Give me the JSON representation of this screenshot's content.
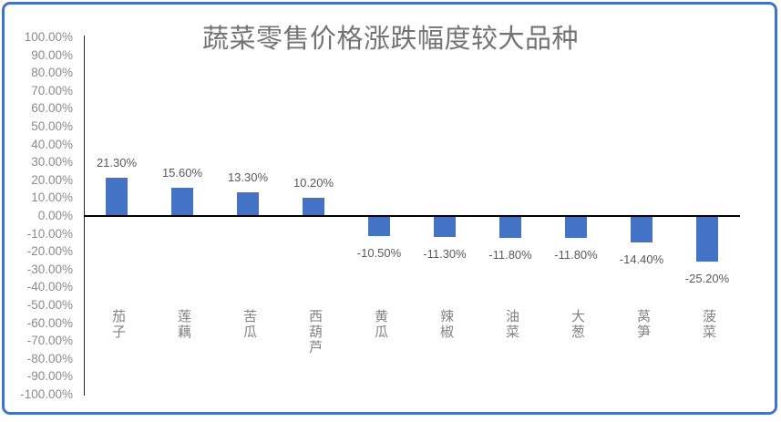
{
  "window": {
    "background_color": "#ffffff",
    "frame_border_color": "#4472C4"
  },
  "chart_data": {
    "type": "bar",
    "title": "蔬菜零售价格涨跌幅度较大品种",
    "categories": [
      "茄子",
      "莲藕",
      "苦瓜",
      "西葫芦",
      "黄瓜",
      "辣椒",
      "油菜",
      "大葱",
      "莴笋",
      "菠菜"
    ],
    "values": [
      21.3,
      15.6,
      13.3,
      10.2,
      -10.5,
      -11.3,
      -11.8,
      -11.8,
      -14.4,
      -25.2
    ],
    "data_labels": [
      "21.30%",
      "15.60%",
      "13.30%",
      "10.20%",
      "-10.50%",
      "-11.30%",
      "-11.80%",
      "-11.80%",
      "-14.40%",
      "-25.20%"
    ],
    "y_ticks": [
      "100.00%",
      "90.00%",
      "80.00%",
      "70.00%",
      "60.00%",
      "50.00%",
      "40.00%",
      "30.00%",
      "20.00%",
      "10.00%",
      "0.00%",
      "-10.00%",
      "-20.00%",
      "-30.00%",
      "-40.00%",
      "-50.00%",
      "-60.00%",
      "-70.00%",
      "-80.00%",
      "-90.00%",
      "-100.00%"
    ],
    "y_tick_values": [
      100,
      90,
      80,
      70,
      60,
      50,
      40,
      30,
      20,
      10,
      0,
      -10,
      -20,
      -30,
      -40,
      -50,
      -60,
      -70,
      -80,
      -90,
      -100
    ],
    "ylim": [
      -100,
      100
    ],
    "xlabel": "",
    "ylabel": "",
    "grid": "off",
    "legend": "none",
    "bar_color": "#4472C4",
    "zero_line_color": "#000000",
    "axis_line_color": "#262626",
    "tick_label_color": "#8a8a8a",
    "data_label_color": "#595959",
    "category_label_color": "#828282",
    "title_color": "#737373"
  }
}
